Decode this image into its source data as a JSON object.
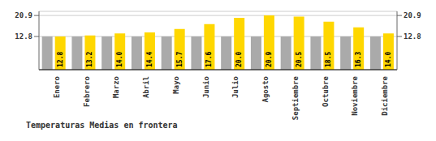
{
  "chart_data": {
    "type": "bar",
    "title": "Temperaturas Medias en frontera",
    "categories": [
      "Enero",
      "Febrero",
      "Marzo",
      "Abril",
      "Mayo",
      "Junio",
      "Julio",
      "Agosto",
      "Septiembre",
      "Octubre",
      "Noviembre",
      "Diciembre"
    ],
    "series": [
      {
        "color": "#AAAAAA",
        "values": [
          12.8,
          12.8,
          12.8,
          12.8,
          12.8,
          12.8,
          12.8,
          12.8,
          12.8,
          12.8,
          12.8,
          12.8
        ]
      },
      {
        "color": "#FFD700",
        "values": [
          12.8,
          13.2,
          14.0,
          14.4,
          15.7,
          17.6,
          20.0,
          20.9,
          20.5,
          18.5,
          16.3,
          14.0
        ],
        "data_labels": true
      }
    ],
    "ylim": [
      0,
      22.5
    ],
    "yticks": [
      12.8,
      20.9
    ],
    "y2lim": [
      0,
      22.5
    ],
    "y2ticks": [
      12.8,
      20.9
    ],
    "grid": true
  }
}
